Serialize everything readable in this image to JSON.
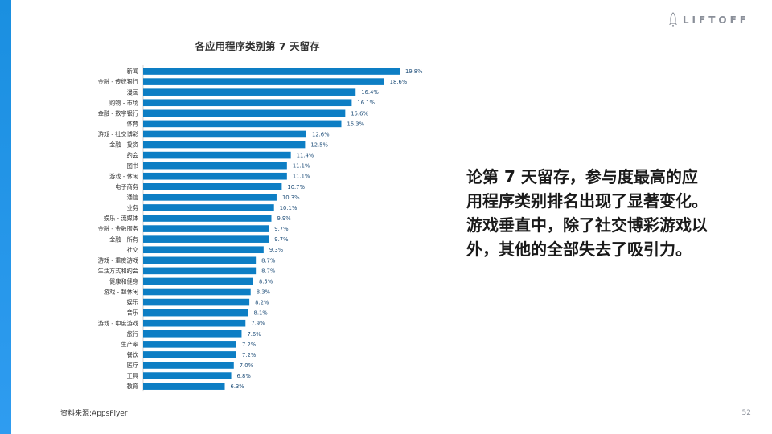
{
  "slide": {
    "page_number": "52",
    "source": "资料来源:AppsFlyer",
    "side_text": "论第 7 天留存，参与度最高的应用程序类别排名出现了显著变化。游戏垂直中，除了社交博彩游戏以外，其他的全部失去了吸引力。",
    "logo_text": "LIFTOFF",
    "logo_icon": "rocket-icon"
  },
  "colors": {
    "bar": "#0d7ec4",
    "accent": "#1a8fe0",
    "label": "#333333",
    "value_label": "#1f4e79"
  },
  "chart_data": {
    "type": "bar",
    "orientation": "horizontal",
    "title": "各应用程序类别第 7 天留存",
    "xlabel": "",
    "ylabel": "",
    "xlim": [
      0,
      20
    ],
    "grid": false,
    "categories": [
      "新闻",
      "金融 - 传统银行",
      "漫画",
      "购物 - 市场",
      "金融 - 数字银行",
      "体育",
      "游戏 - 社交博彩",
      "金融 - 投资",
      "约会",
      "图书",
      "游戏 - 休闲",
      "电子商务",
      "通信",
      "业务",
      "娱乐 - 流媒体",
      "金融 - 金融服务",
      "金融 - 所有",
      "社交",
      "游戏 - 重度游戏",
      "生活方式和约会",
      "健康和健身",
      "游戏 - 超休闲",
      "娱乐",
      "音乐",
      "游戏 - 中度游戏",
      "旅行",
      "生产率",
      "餐饮",
      "医疗",
      "工具",
      "教育"
    ],
    "values": [
      19.8,
      18.6,
      16.4,
      16.1,
      15.6,
      15.3,
      12.6,
      12.5,
      11.4,
      11.1,
      11.1,
      10.7,
      10.3,
      10.1,
      9.9,
      9.7,
      9.7,
      9.3,
      8.7,
      8.7,
      8.5,
      8.3,
      8.2,
      8.1,
      7.9,
      7.6,
      7.2,
      7.2,
      7.0,
      6.8,
      6.3
    ],
    "value_labels": [
      "19.8%",
      "18.6%",
      "16.4%",
      "16.1%",
      "15.6%",
      "15.3%",
      "12.6%",
      "12.5%",
      "11.4%",
      "11.1%",
      "11.1%",
      "10.7%",
      "10.3%",
      "10.1%",
      "9.9%",
      "9.7%",
      "9.7%",
      "9.3%",
      "8.7%",
      "8.7%",
      "8.5%",
      "8.3%",
      "8.2%",
      "8.1%",
      "7.9%",
      "7.6%",
      "7.2%",
      "7.2%",
      "7.0%",
      "6.8%",
      "6.3%"
    ]
  }
}
